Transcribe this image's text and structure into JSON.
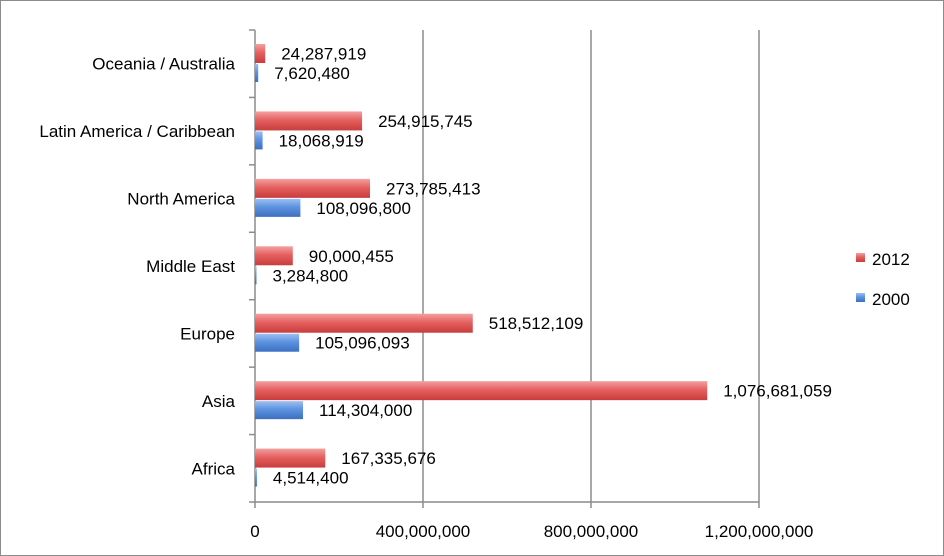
{
  "chart_data": {
    "type": "bar",
    "orientation": "horizontal",
    "title": "",
    "xlabel": "",
    "ylabel": "",
    "categories": [
      "Africa",
      "Asia",
      "Europe",
      "Middle East",
      "North America",
      "Latin America / Caribbean",
      "Oceania / Australia"
    ],
    "series": [
      {
        "name": "2012",
        "color": "#e05252",
        "values": [
          167335676,
          1076681059,
          518512109,
          90000455,
          273785413,
          254915745,
          24287919
        ],
        "labels": [
          "167,335,676",
          "1,076,681,059",
          "518,512,109",
          "90,000,455",
          "273,785,413",
          "254,915,745",
          "24,287,919"
        ]
      },
      {
        "name": "2000",
        "color": "#4f86d9",
        "values": [
          4514400,
          114304000,
          105096093,
          3284800,
          108096800,
          18068919,
          7620480
        ],
        "labels": [
          "4,514,400",
          "114,304,000",
          "105,096,093",
          "3,284,800",
          "108,096,800",
          "18,068,919",
          "7,620,480"
        ]
      }
    ],
    "xlim": [
      0,
      1200000000
    ],
    "xticks": [
      0,
      400000000,
      800000000,
      1200000000
    ],
    "xtick_labels": [
      "0",
      "400,000,000",
      "800,000,000",
      "1,200,000,000"
    ],
    "grid": true,
    "legend": {
      "position": "right",
      "entries": [
        "2012",
        "2000"
      ]
    }
  }
}
